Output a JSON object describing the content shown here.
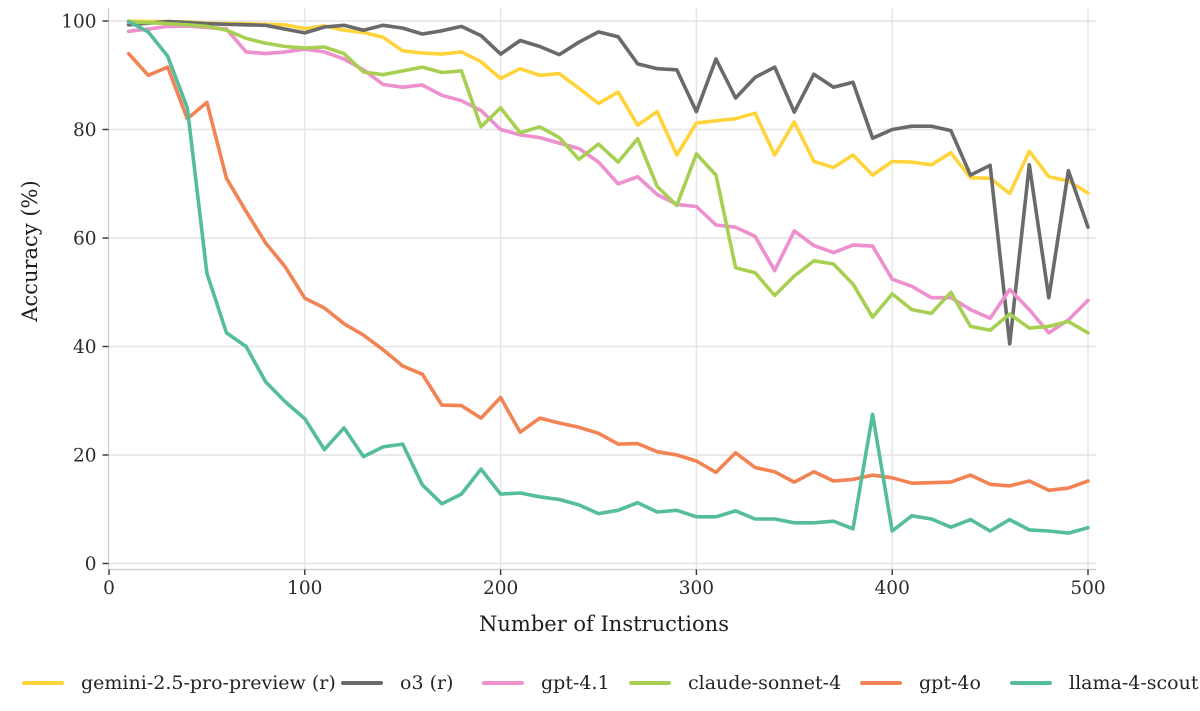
{
  "chart_data": {
    "type": "line",
    "title": "",
    "xlabel": "Number of Instructions",
    "ylabel": "Accuracy (%)",
    "xlim": [
      0,
      500
    ],
    "ylim": [
      0,
      100
    ],
    "x_ticks": [
      0,
      100,
      200,
      300,
      400,
      500
    ],
    "y_ticks": [
      0,
      20,
      40,
      60,
      80,
      100
    ],
    "grid": true,
    "legend_position": "bottom",
    "x": [
      10,
      20,
      30,
      40,
      50,
      60,
      70,
      80,
      90,
      100,
      110,
      120,
      130,
      140,
      150,
      160,
      170,
      180,
      190,
      200,
      210,
      220,
      230,
      240,
      250,
      260,
      270,
      280,
      290,
      300,
      310,
      320,
      330,
      340,
      350,
      360,
      370,
      380,
      390,
      400,
      410,
      420,
      430,
      440,
      450,
      460,
      470,
      480,
      490,
      500
    ],
    "series": [
      {
        "name": "gemini-2.5-pro-preview (r)",
        "color": "#FFD43B",
        "values": [
          100,
          99.9,
          99.9,
          99.8,
          99.6,
          99.5,
          99.5,
          99.4,
          99.3,
          98.6,
          99.1,
          98.3,
          97.9,
          97.0,
          94.5,
          94.1,
          93.9,
          94.3,
          92.5,
          89.4,
          91.2,
          90.0,
          90.3,
          87.6,
          84.8,
          86.9,
          80.8,
          83.3,
          75.3,
          81.2,
          81.6,
          82.0,
          83.0,
          75.3,
          81.4,
          74.1,
          73.0,
          75.3,
          71.6,
          74.1,
          74.0,
          73.5,
          75.7,
          71.1,
          71.0,
          68.2,
          76.0,
          71.3,
          70.5,
          68.3
        ]
      },
      {
        "name": "o3 (r)",
        "color": "#6A6A6A",
        "values": [
          99.3,
          99.6,
          99.9,
          99.7,
          99.5,
          99.4,
          99.3,
          99.2,
          98.5,
          97.8,
          98.9,
          99.2,
          98.3,
          99.2,
          98.7,
          97.6,
          98.2,
          99.0,
          97.3,
          93.9,
          96.4,
          95.3,
          93.8,
          96.1,
          98.0,
          97.1,
          92.1,
          91.2,
          91.0,
          83.3,
          93.0,
          85.8,
          89.6,
          91.5,
          83.2,
          90.2,
          87.8,
          88.7,
          78.4,
          80.0,
          80.6,
          80.6,
          79.8,
          71.6,
          73.4,
          40.5,
          73.5,
          49.0,
          72.4,
          62.0
        ]
      },
      {
        "name": "gpt-4.1",
        "color": "#EE8FCE",
        "values": [
          98.1,
          98.5,
          99.0,
          99.1,
          98.8,
          98.5,
          94.3,
          94.0,
          94.3,
          94.8,
          94.3,
          93.0,
          91.0,
          88.3,
          87.8,
          88.2,
          86.3,
          85.3,
          83.5,
          80.0,
          79.0,
          78.5,
          77.5,
          76.5,
          74.0,
          70.0,
          71.3,
          68.0,
          66.2,
          65.8,
          62.4,
          62.0,
          60.3,
          54.0,
          61.3,
          58.6,
          57.3,
          58.7,
          58.5,
          52.4,
          51.1,
          49.0,
          49.0,
          46.8,
          45.2,
          50.5,
          46.8,
          42.5,
          44.9,
          48.5
        ]
      },
      {
        "name": "claude-sonnet-4",
        "color": "#A7D052",
        "values": [
          99.8,
          99.7,
          99.5,
          99.3,
          99.0,
          98.3,
          96.8,
          95.9,
          95.3,
          95.0,
          95.2,
          94.0,
          90.6,
          90.1,
          90.8,
          91.5,
          90.5,
          90.8,
          80.5,
          84.0,
          79.4,
          80.5,
          78.5,
          74.5,
          77.3,
          74.0,
          78.3,
          69.5,
          66.0,
          75.5,
          71.6,
          54.5,
          53.6,
          49.4,
          53.0,
          55.8,
          55.2,
          51.5,
          45.4,
          49.7,
          46.8,
          46.1,
          50.0,
          43.7,
          43.0,
          46.0,
          43.4,
          43.7,
          44.6,
          42.5
        ]
      },
      {
        "name": "gpt-4o",
        "color": "#F28354",
        "values": [
          94.0,
          90.0,
          91.5,
          82.0,
          85.0,
          71.0,
          64.9,
          59.1,
          54.7,
          48.9,
          47.1,
          44.2,
          42.1,
          39.4,
          36.4,
          34.9,
          29.2,
          29.1,
          26.8,
          30.6,
          24.2,
          26.8,
          25.9,
          25.1,
          24.0,
          22.0,
          22.1,
          20.6,
          20.0,
          18.9,
          16.8,
          20.4,
          17.7,
          16.9,
          15.0,
          16.9,
          15.2,
          15.5,
          16.3,
          15.8,
          14.8,
          14.9,
          15.0,
          16.3,
          14.6,
          14.3,
          15.2,
          13.5,
          13.9,
          15.2
        ]
      },
      {
        "name": "llama-4-scout",
        "color": "#55BD9B",
        "values": [
          99.9,
          98.0,
          93.5,
          84.0,
          53.5,
          42.5,
          40.0,
          33.5,
          29.8,
          26.7,
          21.0,
          25.0,
          19.7,
          21.5,
          22.0,
          14.5,
          11.0,
          12.8,
          17.4,
          12.8,
          13.0,
          12.3,
          11.8,
          10.8,
          9.2,
          9.8,
          11.2,
          9.5,
          9.8,
          8.6,
          8.6,
          9.7,
          8.2,
          8.2,
          7.5,
          7.5,
          7.8,
          6.4,
          27.5,
          6.0,
          8.8,
          8.2,
          6.7,
          8.1,
          6.0,
          8.1,
          6.2,
          6.0,
          5.6,
          6.6
        ]
      }
    ],
    "style": {
      "grid_color": "#E4E4E4",
      "axis_line_color": "#CCCCCC",
      "tick_color": "#333333",
      "text_color": "#2b2b2b",
      "line_width": 3.6
    }
  }
}
